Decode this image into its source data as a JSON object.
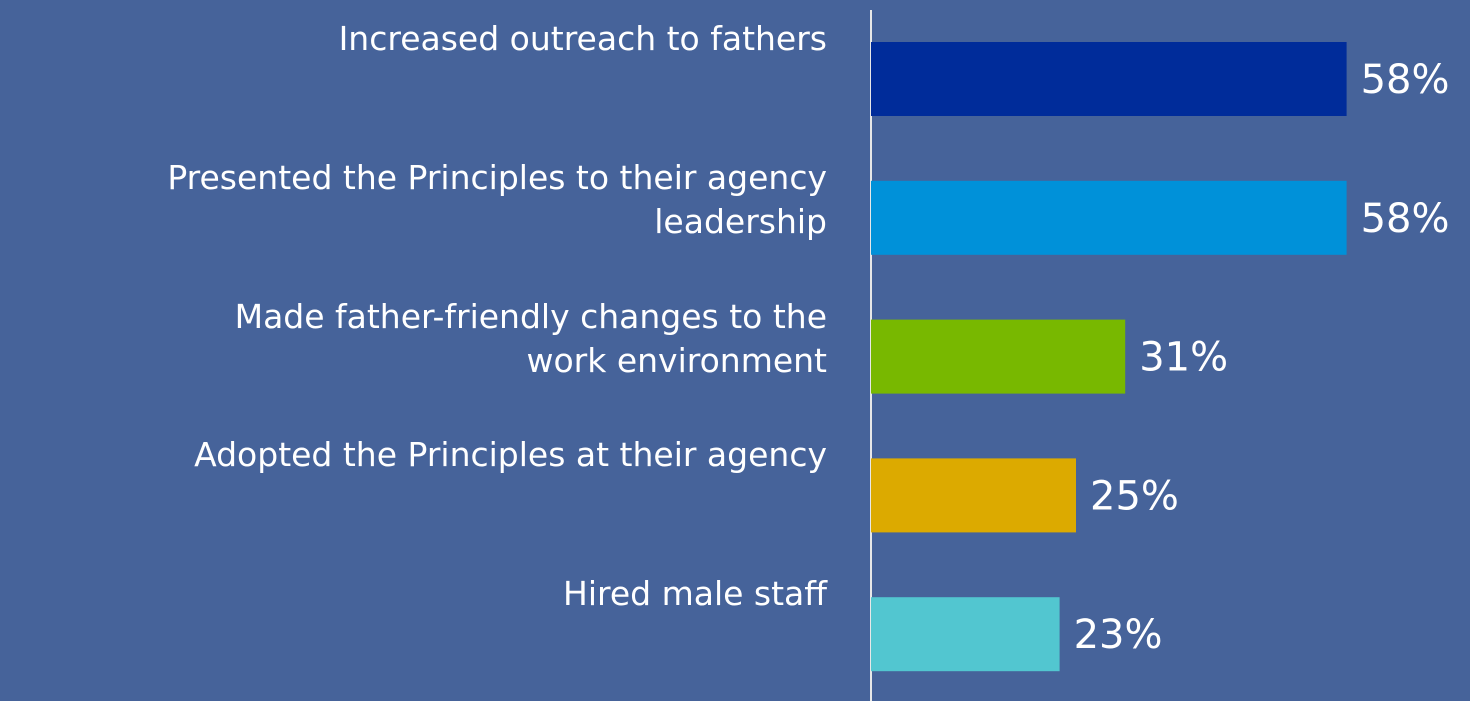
{
  "chart_data": {
    "type": "bar",
    "orientation": "horizontal",
    "categories": [
      "Increased outreach to fathers",
      "Presented the Principles to their agency\nleadership",
      "Made father-friendly changes to the\nwork environment",
      "Adopted the Principles at their agency",
      "Hired male staff"
    ],
    "values": [
      58,
      58,
      31,
      25,
      23
    ],
    "value_labels": [
      "58%",
      "58%",
      "31%",
      "25%",
      "23%"
    ],
    "colors": [
      "#002c9a",
      "#0091d9",
      "#78b800",
      "#dcaa00",
      "#52c6d0"
    ]
  }
}
